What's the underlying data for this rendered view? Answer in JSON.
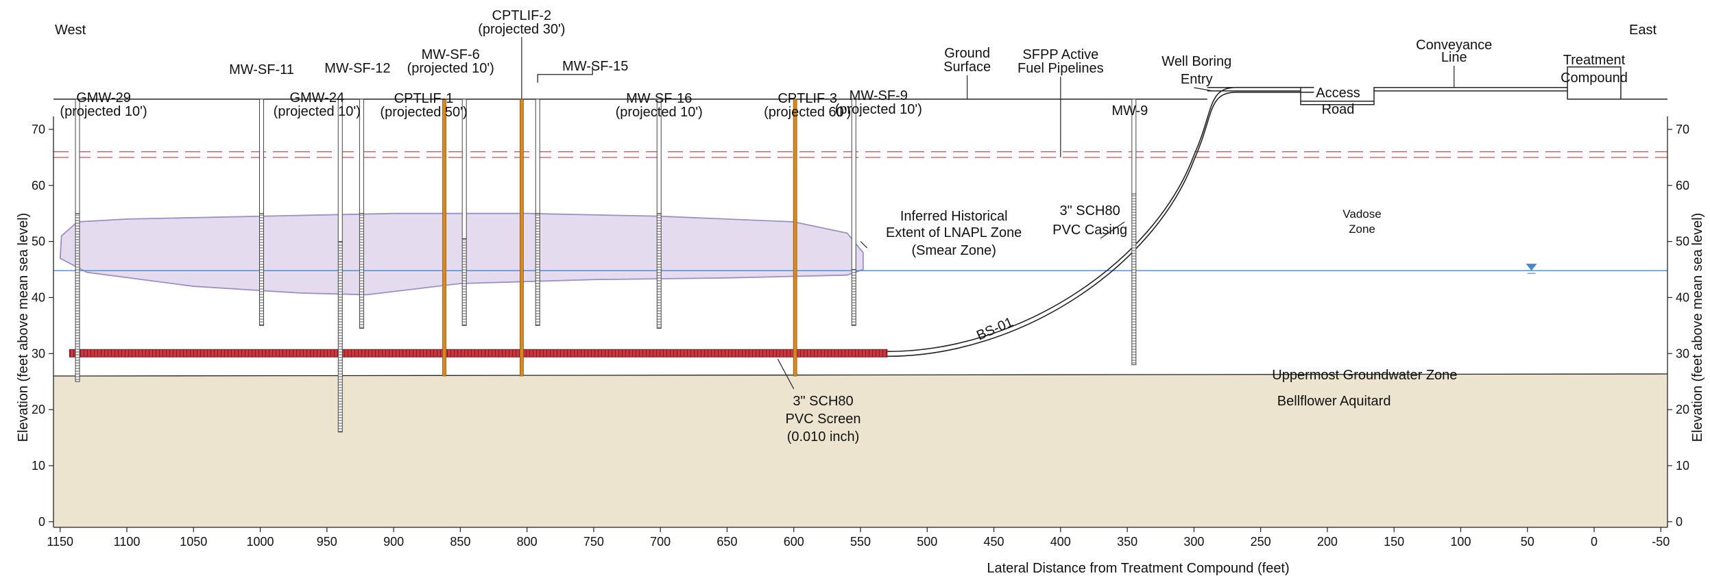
{
  "orientation": {
    "west": "West",
    "east": "East"
  },
  "axes": {
    "x_title": "Lateral Distance from Treatment Compound (feet)",
    "y_title_left": "Elevation (feet above mean sea level)",
    "y_title_right": "Elevation (feet above mean sea level)",
    "x_range": [
      1155,
      -55
    ],
    "y_range": [
      -1,
      75
    ],
    "x_ticks": [
      "1150",
      "1100",
      "1050",
      "1000",
      "950",
      "900",
      "850",
      "800",
      "750",
      "700",
      "650",
      "600",
      "550",
      "500",
      "450",
      "400",
      "350",
      "300",
      "250",
      "200",
      "150",
      "100",
      "50",
      "0",
      "-50"
    ],
    "x_tick_values": [
      1150,
      1100,
      1050,
      1000,
      950,
      900,
      850,
      800,
      750,
      700,
      650,
      600,
      550,
      500,
      450,
      400,
      350,
      300,
      250,
      200,
      150,
      100,
      50,
      0,
      -50
    ],
    "y_ticks": [
      "0",
      "10",
      "20",
      "30",
      "40",
      "50",
      "60",
      "70"
    ],
    "y_tick_values": [
      0,
      10,
      20,
      30,
      40,
      50,
      60,
      70
    ]
  },
  "colors": {
    "aquitard": "#ece4cf",
    "lnapl_fill": "#e4dcee",
    "lnapl_stroke": "#9a8fc6",
    "water_table": "#4a86c5",
    "pipeline_dash": "#e0454f",
    "screen": "#c8363f",
    "cpt": "#d88a22"
  },
  "ground_elevation": 75.4,
  "aquitard_top_elevation": 26,
  "water_table_elevation": 44.8,
  "fuel_pipeline_elevations": [
    66,
    65
  ],
  "wells": [
    {
      "label": "GMW-29",
      "sub": "(projected 10')",
      "x": 1137,
      "top": 75.4,
      "screen_top": 55,
      "bottom": 25
    },
    {
      "label": "MW-SF-11",
      "sub": "",
      "x": 999,
      "top": 75.4,
      "screen_top": 55,
      "bottom": 35
    },
    {
      "label": "GMW-24",
      "sub": "(projected 10')",
      "x": 940,
      "top": 75.4,
      "screen_top": 50,
      "bottom": 16
    },
    {
      "label": "MW-SF-12",
      "sub": "",
      "x": 924,
      "top": 75.4,
      "screen_top": 55,
      "bottom": 34.5
    },
    {
      "label": "MW-SF-6",
      "sub": "(projected 10')",
      "x": 847,
      "top": 75.4,
      "screen_top": 50.5,
      "bottom": 35
    },
    {
      "label": "MW-SF-15",
      "sub": "",
      "x": 792,
      "top": 75.4,
      "screen_top": 55,
      "bottom": 35
    },
    {
      "label": "MW-SF-16",
      "sub": "(projected 10')",
      "x": 701,
      "top": 75.4,
      "screen_top": 55,
      "bottom": 34.5
    },
    {
      "label": "MW-SF-9",
      "sub": "(projected 10')",
      "x": 555,
      "top": 75.4,
      "screen_top": 45,
      "bottom": 35
    },
    {
      "label": "MW-9",
      "sub": "",
      "x": 345,
      "top": 75.4,
      "screen_top": 58.5,
      "bottom": 28
    }
  ],
  "cpts": [
    {
      "label": "CPTLIF-1",
      "sub": "(projected 50')",
      "x": 862
    },
    {
      "label": "CPTLIF-2",
      "sub": "(projected 30')",
      "x": 804
    },
    {
      "label": "CPTLIF-3",
      "sub": "(projected 60')",
      "x": 599
    }
  ],
  "labels": {
    "ground_surface": [
      "Ground",
      "Surface"
    ],
    "sfpp": [
      "SFPP Active",
      "Fuel Pipelines"
    ],
    "well_boring_entry": [
      "Well Boring",
      "Entry"
    ],
    "access_road": [
      "Access",
      "Road"
    ],
    "conveyance_line": [
      "Conveyance",
      "Line"
    ],
    "treatment_compound": [
      "Treatment",
      "Compound"
    ],
    "lnapl": [
      "Inferred Historical",
      "Extent of LNAPL Zone",
      "(Smear Zone)"
    ],
    "casing": [
      "3\" SCH80",
      "PVC Casing"
    ],
    "vadose": [
      "Vadose",
      "Zone"
    ],
    "bs01": "BS-01",
    "groundwater_zone": "Uppermost Groundwater Zone",
    "aquitard": "Bellflower Aquitard",
    "screen": [
      "3\" SCH80",
      "PVC Screen",
      "(0.010 inch)"
    ]
  }
}
